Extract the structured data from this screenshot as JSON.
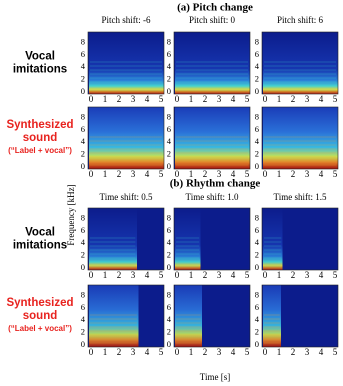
{
  "sections": [
    {
      "title": "(a) Pitch change",
      "panels": [
        "Pitch shift: -6",
        "Pitch shift: 0",
        "Pitch shift: 6"
      ]
    },
    {
      "title": "(b) Rhythm change",
      "panels": [
        "Time shift: 0.5",
        "Time shift: 1.0",
        "Time shift: 1.5"
      ]
    }
  ],
  "row_labels": [
    {
      "lines": [
        "Vocal",
        "imitations"
      ]
    },
    {
      "lines": [
        "Synthesized",
        "sound"
      ],
      "note": "(“Label + vocal”)"
    }
  ],
  "x_ticks": [
    0,
    1,
    2,
    3,
    4,
    5
  ],
  "y_ticks": [
    0,
    2,
    4,
    6,
    8
  ],
  "x_label": "Time [s]",
  "y_label": "Frequency [kHz]"
}
